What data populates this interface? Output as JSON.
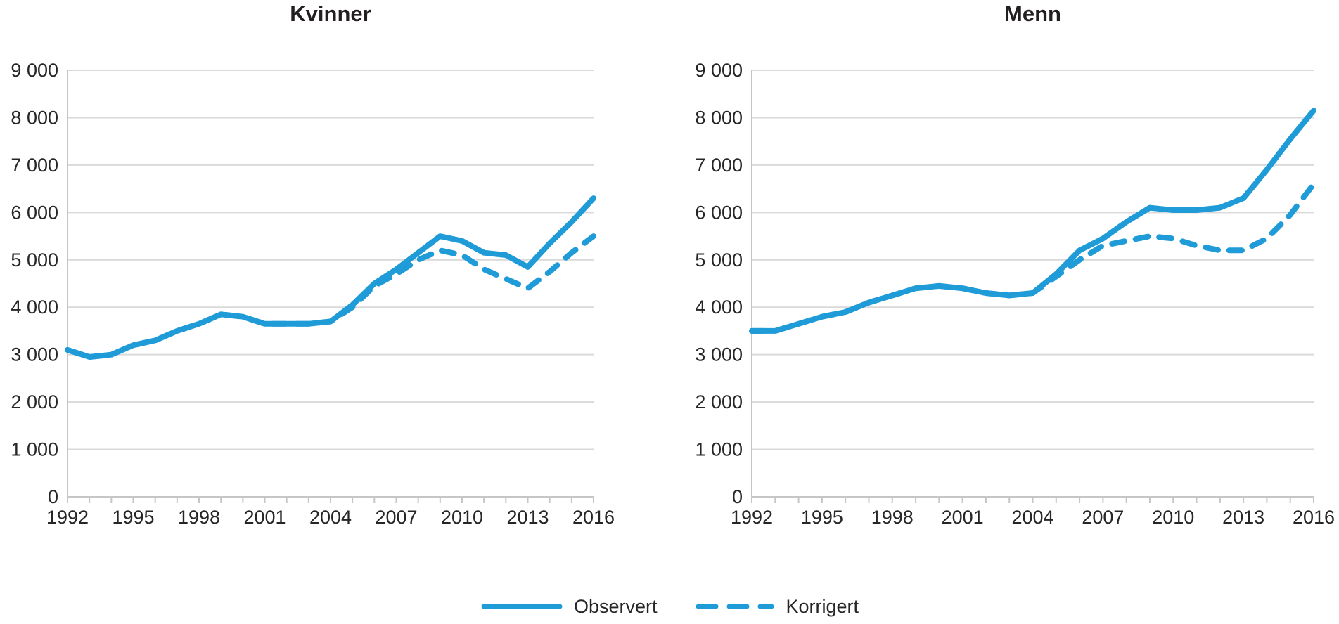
{
  "legend": {
    "items": [
      {
        "label": "Observert",
        "style": "solid"
      },
      {
        "label": "Korrigert",
        "style": "dashed"
      }
    ]
  },
  "colors": {
    "line": "#1f9bd8",
    "grid": "#d9d9d9",
    "axis": "#c6c6c6",
    "text": "#262626",
    "title": "#231f20"
  },
  "chart_data": [
    {
      "type": "line",
      "title": "Kvinner",
      "x": [
        1992,
        1993,
        1994,
        1995,
        1996,
        1997,
        1998,
        1999,
        2000,
        2001,
        2002,
        2003,
        2004,
        2005,
        2006,
        2007,
        2008,
        2009,
        2010,
        2011,
        2012,
        2013,
        2014,
        2015,
        2016
      ],
      "x_tick_labels": [
        "1992",
        "1995",
        "1998",
        "2001",
        "2004",
        "2007",
        "2010",
        "2013",
        "2016"
      ],
      "ylim": [
        0,
        9000
      ],
      "y_tick_step": 1000,
      "y_tick_labels": [
        "0",
        "1 000",
        "2 000",
        "3 000",
        "4 000",
        "5 000",
        "6 000",
        "7 000",
        "8 000",
        "9 000"
      ],
      "grid": "horizontal",
      "legend_position": "bottom",
      "series": [
        {
          "name": "Observert",
          "style": "solid",
          "values": [
            3100,
            2950,
            3000,
            3200,
            3300,
            3500,
            3650,
            3850,
            3800,
            3650,
            3650,
            3650,
            3700,
            4050,
            4500,
            4800,
            5150,
            5500,
            5400,
            5150,
            5100,
            4850,
            5350,
            5800,
            6300
          ]
        },
        {
          "name": "Korrigert",
          "style": "dashed",
          "values": [
            3100,
            2950,
            3000,
            3200,
            3300,
            3500,
            3650,
            3850,
            3800,
            3650,
            3650,
            3650,
            3700,
            4000,
            4450,
            4700,
            5000,
            5200,
            5100,
            4800,
            4600,
            4400,
            4750,
            5150,
            5500
          ]
        }
      ]
    },
    {
      "type": "line",
      "title": "Menn",
      "x": [
        1992,
        1993,
        1994,
        1995,
        1996,
        1997,
        1998,
        1999,
        2000,
        2001,
        2002,
        2003,
        2004,
        2005,
        2006,
        2007,
        2008,
        2009,
        2010,
        2011,
        2012,
        2013,
        2014,
        2015,
        2016
      ],
      "x_tick_labels": [
        "1992",
        "1995",
        "1998",
        "2001",
        "2004",
        "2007",
        "2010",
        "2013",
        "2016"
      ],
      "ylim": [
        0,
        9000
      ],
      "y_tick_step": 1000,
      "y_tick_labels": [
        "0",
        "1 000",
        "2 000",
        "3 000",
        "4 000",
        "5 000",
        "6 000",
        "7 000",
        "8 000",
        "9 000"
      ],
      "grid": "horizontal",
      "legend_position": "bottom",
      "series": [
        {
          "name": "Observert",
          "style": "solid",
          "values": [
            3500,
            3500,
            3650,
            3800,
            3900,
            4100,
            4250,
            4400,
            4450,
            4400,
            4300,
            4250,
            4300,
            4700,
            5200,
            5450,
            5800,
            6100,
            6050,
            6050,
            6100,
            6300,
            6900,
            7550,
            8150
          ]
        },
        {
          "name": "Korrigert",
          "style": "dashed",
          "values": [
            3500,
            3500,
            3650,
            3800,
            3900,
            4100,
            4250,
            4400,
            4450,
            4400,
            4300,
            4250,
            4300,
            4650,
            5000,
            5300,
            5400,
            5500,
            5450,
            5300,
            5200,
            5200,
            5450,
            5950,
            6600
          ]
        }
      ]
    }
  ]
}
